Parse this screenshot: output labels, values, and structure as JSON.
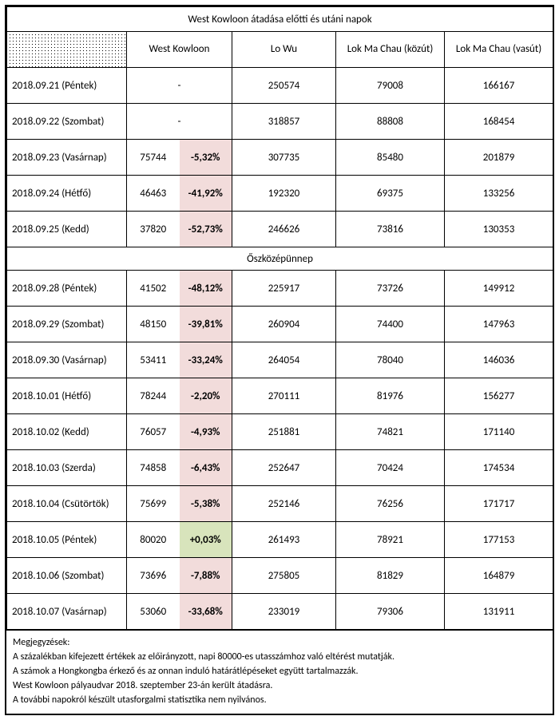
{
  "title": "West Kowloon átadása előtti és utáni napok",
  "columns": {
    "west_kowloon": "West Kowloon",
    "lo_wu": "Lo Wu",
    "lok_ma_chau_road": "Lok Ma Chau (közút)",
    "lok_ma_chau_rail": "Lok Ma Chau (vasút)"
  },
  "section_label": "Őszközépünnep",
  "rows1": [
    {
      "date": "2018.09.21 (Péntek)",
      "wk_val": "",
      "wk_dash": "-",
      "pct": "",
      "pct_cls": "",
      "lw": "250574",
      "lmr": "79008",
      "lmv": "166167"
    },
    {
      "date": "2018.09.22 (Szombat)",
      "wk_val": "",
      "wk_dash": "-",
      "pct": "",
      "pct_cls": "",
      "lw": "318857",
      "lmr": "88808",
      "lmv": "168454"
    },
    {
      "date": "2018.09.23 (Vasárnap)",
      "wk_val": "75744",
      "wk_dash": "",
      "pct": "-5,32%",
      "pct_cls": "pct-red",
      "lw": "307735",
      "lmr": "85480",
      "lmv": "201879"
    },
    {
      "date": "2018.09.24 (Hétfő)",
      "wk_val": "46463",
      "wk_dash": "",
      "pct": "-41,92%",
      "pct_cls": "pct-red",
      "lw": "192320",
      "lmr": "69375",
      "lmv": "133256"
    },
    {
      "date": "2018.09.25 (Kedd)",
      "wk_val": "37820",
      "wk_dash": "",
      "pct": "-52,73%",
      "pct_cls": "pct-red",
      "lw": "246626",
      "lmr": "73816",
      "lmv": "130353"
    }
  ],
  "rows2": [
    {
      "date": "2018.09.28 (Péntek)",
      "wk_val": "41502",
      "pct": "-48,12%",
      "pct_cls": "pct-red",
      "lw": "225917",
      "lmr": "73726",
      "lmv": "149912"
    },
    {
      "date": "2018.09.29 (Szombat)",
      "wk_val": "48150",
      "pct": "-39,81%",
      "pct_cls": "pct-red",
      "lw": "260904",
      "lmr": "74400",
      "lmv": "147963"
    },
    {
      "date": "2018.09.30 (Vasárnap)",
      "wk_val": "53411",
      "pct": "-33,24%",
      "pct_cls": "pct-red",
      "lw": "264054",
      "lmr": "78040",
      "lmv": "146036"
    },
    {
      "date": "2018.10.01 (Hétfő)",
      "wk_val": "78244",
      "pct": "-2,20%",
      "pct_cls": "pct-red",
      "lw": "270111",
      "lmr": "81976",
      "lmv": "156277"
    },
    {
      "date": "2018.10.02 (Kedd)",
      "wk_val": "76057",
      "pct": "-4,93%",
      "pct_cls": "pct-red",
      "lw": "251881",
      "lmr": "74821",
      "lmv": "171140"
    },
    {
      "date": "2018.10.03 (Szerda)",
      "wk_val": "74858",
      "pct": "-6,43%",
      "pct_cls": "pct-red",
      "lw": "252647",
      "lmr": "70424",
      "lmv": "174534"
    },
    {
      "date": "2018.10.04 (Csütörtök)",
      "wk_val": "75699",
      "pct": "-5,38%",
      "pct_cls": "pct-red",
      "lw": "252146",
      "lmr": "76256",
      "lmv": "171717"
    },
    {
      "date": "2018.10.05 (Péntek)",
      "wk_val": "80020",
      "pct": "+0,03%",
      "pct_cls": "pct-green",
      "lw": "261493",
      "lmr": "78921",
      "lmv": "177153"
    },
    {
      "date": "2018.10.06 (Szombat)",
      "wk_val": "73696",
      "pct": "-7,88%",
      "pct_cls": "pct-red",
      "lw": "275805",
      "lmr": "81829",
      "lmv": "164879"
    },
    {
      "date": "2018.10.07 (Vasárnap)",
      "wk_val": "53060",
      "pct": "-33,68%",
      "pct_cls": "pct-red",
      "lw": "233019",
      "lmr": "79306",
      "lmv": "131911"
    }
  ],
  "notes": {
    "heading": "Megjegyzések:",
    "n1": "A százalékban kifejezett értékek az előirányzott, napi 80000-es utasszámhoz való eltérést mutatják.",
    "n2": "A számok a Hongkongba érkező és az onnan induló határátlépéseket együtt tartalmazzák.",
    "n3": "West Kowloon pályaudvar 2018. szeptember 23-án került átadásra.",
    "n4": "A további napokról készült utasforgalmi statisztika nem nyilvános."
  }
}
